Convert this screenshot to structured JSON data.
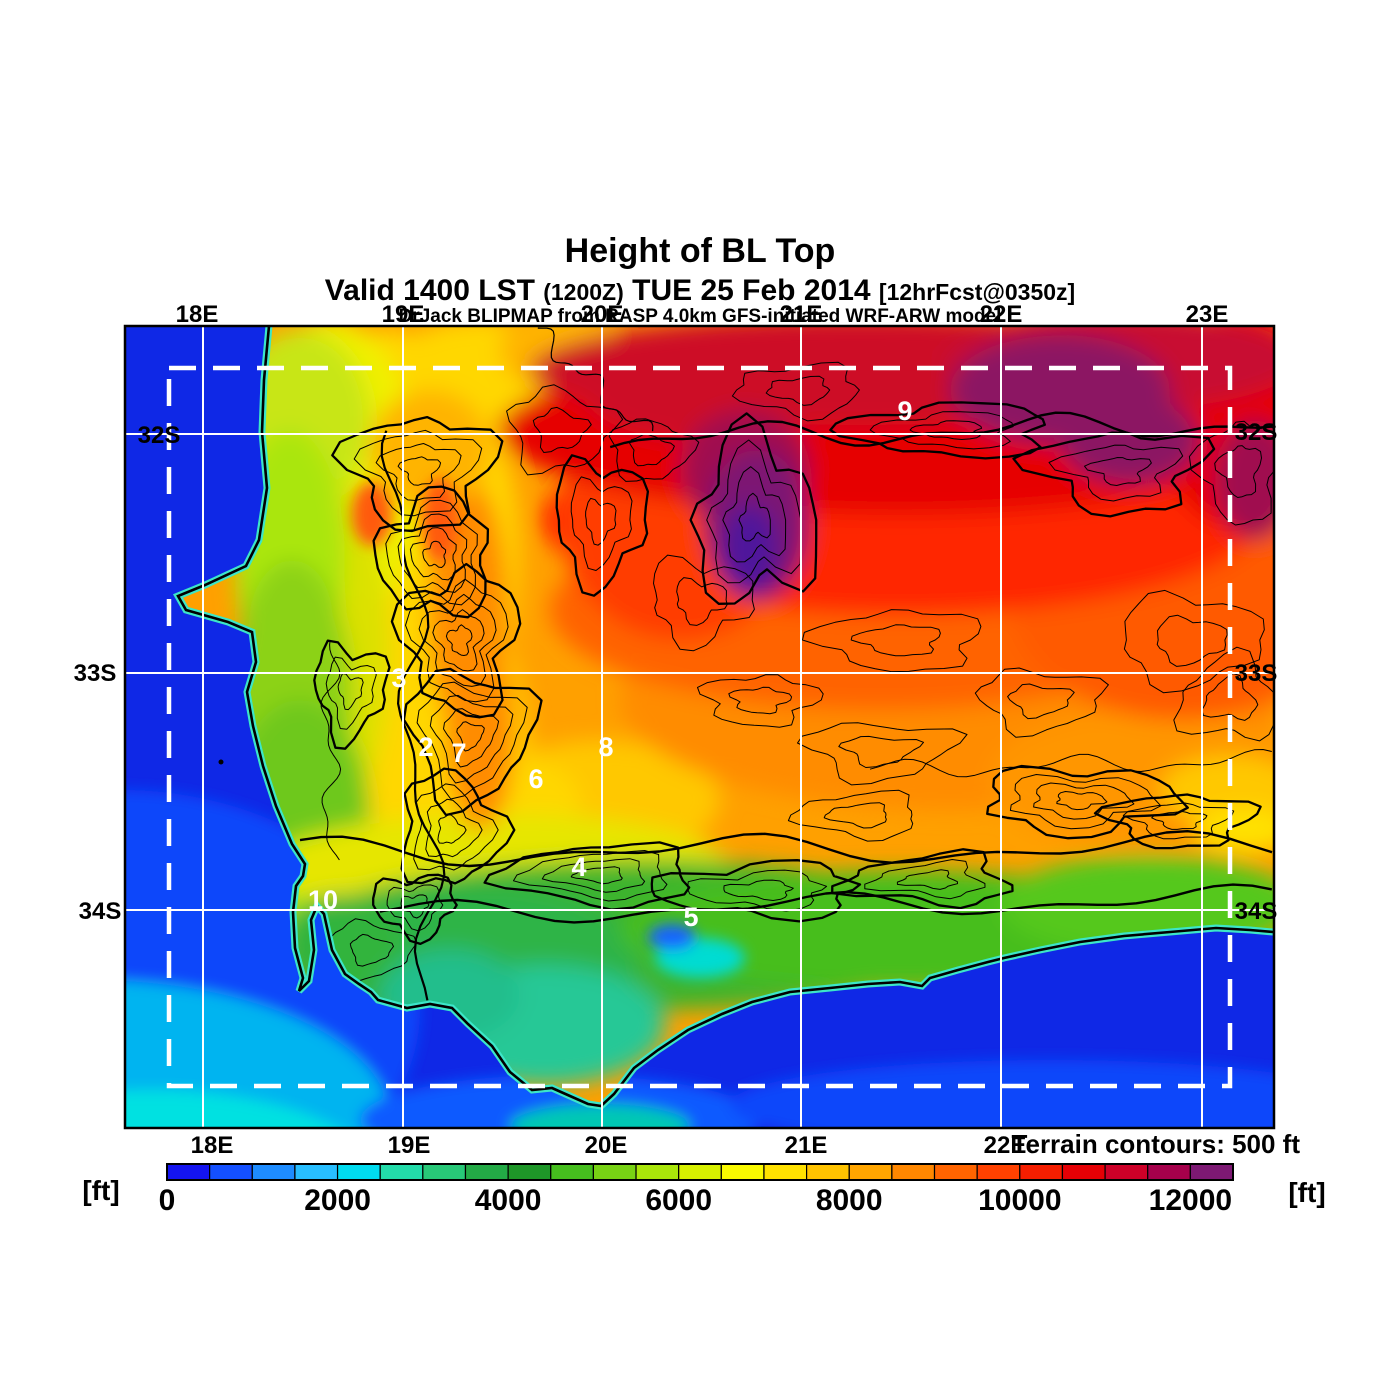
{
  "header": {
    "title": "Height of BL Top",
    "valid_prefix": "Valid 1400 LST ",
    "valid_zulu": "(1200Z)",
    "valid_date": " TUE 25 Feb 2014 ",
    "valid_fcst": "[12hrFcst@0350z]",
    "model_line": "DrJack BLIPMAP from RASP 4.0km GFS-initiated WRF-ARW model"
  },
  "map": {
    "lon_labels": [
      "18E",
      "19E",
      "20E",
      "21E",
      "22E",
      "23E"
    ],
    "lat_labels": [
      "32S",
      "33S",
      "34S"
    ],
    "value_labels": [
      "9",
      "3",
      "2",
      "7",
      "8",
      "6",
      "4",
      "10",
      "5"
    ]
  },
  "colorbar": {
    "unit": "[ft]",
    "ticks": [
      "0",
      "2000",
      "4000",
      "6000",
      "8000",
      "10000",
      "12000"
    ],
    "tick_values": [
      0,
      2000,
      4000,
      6000,
      8000,
      10000,
      12000
    ],
    "step_ft": 500,
    "note": "Terrain contours: 500 ft",
    "colors": [
      "#1414F0",
      "#1450FF",
      "#1E8CFF",
      "#28BEFF",
      "#00DCF0",
      "#23DCAA",
      "#28C878",
      "#23AA46",
      "#1E9628",
      "#46BE1E",
      "#78D214",
      "#AAE60A",
      "#D7F000",
      "#FAFA00",
      "#FFE100",
      "#FFC300",
      "#FFA500",
      "#FF8700",
      "#FF6400",
      "#FF4100",
      "#F51E00",
      "#E60005",
      "#CD0028",
      "#A5004B",
      "#7D1973"
    ]
  },
  "colors": {
    "ocean_deep": "#0F28E6",
    "coast_fringe": "#3CE6C8",
    "gridline": "#ffffff",
    "domain_boundary": "#ffffff",
    "contour": "#000000"
  },
  "chart_data": {
    "type": "heatmap",
    "title": "Height of BL Top",
    "units": "ft",
    "legend_position": "bottom",
    "colorbar_ticks": [
      0,
      2000,
      4000,
      6000,
      8000,
      10000,
      12000
    ],
    "colorbar_step_ft": 500,
    "colorbar_range_ft": [
      0,
      12500
    ],
    "x_axis": {
      "label_suffix": "E",
      "ticks_deg_east": [
        18,
        19,
        20,
        21,
        22,
        23
      ]
    },
    "y_axis": {
      "label_suffix": "S",
      "ticks_deg_south": [
        32,
        33,
        34
      ]
    },
    "terrain_contour_interval_ft": 500,
    "labeled_map_values": [
      {
        "value": 9,
        "lon_e": 21.5,
        "lat_s": 31.9
      },
      {
        "value": 3,
        "lon_e": 19.0,
        "lat_s": 33.0
      },
      {
        "value": 2,
        "lon_e": 19.1,
        "lat_s": 33.3
      },
      {
        "value": 7,
        "lon_e": 19.3,
        "lat_s": 33.3
      },
      {
        "value": 8,
        "lon_e": 20.0,
        "lat_s": 33.3
      },
      {
        "value": 6,
        "lon_e": 19.7,
        "lat_s": 33.4
      },
      {
        "value": 4,
        "lon_e": 19.9,
        "lat_s": 33.8
      },
      {
        "value": 10,
        "lon_e": 18.6,
        "lat_s": 33.95
      },
      {
        "value": 5,
        "lon_e": 20.4,
        "lat_s": 34.0
      }
    ],
    "field_summary": "BL top ~0-2500 ft over ocean, ~4000-6000 ft near south/west coasts, 8000-10000 ft inland, >11500 ft with >12500 ft pockets along northern interior (Karoo)."
  }
}
